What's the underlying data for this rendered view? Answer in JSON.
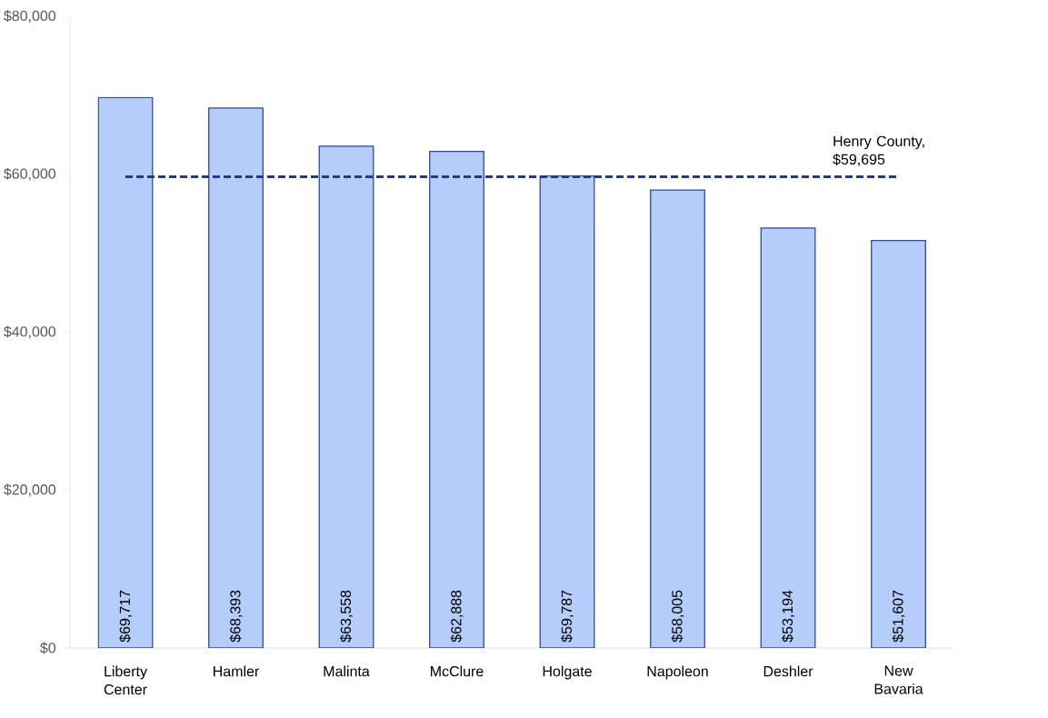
{
  "chart_data": {
    "type": "bar",
    "categories": [
      "Liberty Center",
      "Hamler",
      "Malinta",
      "McClure",
      "Holgate",
      "Napoleon",
      "Deshler",
      "New Bavaria"
    ],
    "values": [
      69717,
      68393,
      63558,
      62888,
      59787,
      58005,
      53194,
      51607
    ],
    "value_labels": [
      "$69,717",
      "$68,393",
      "$63,558",
      "$62,888",
      "$59,787",
      "$58,005",
      "$53,194",
      "$51,607"
    ],
    "color": "#b4cdfa",
    "ylim": [
      0,
      80000
    ],
    "yticks": [
      {
        "value": 0,
        "label": "$0"
      },
      {
        "value": 20000,
        "label": "$20,000"
      },
      {
        "value": 40000,
        "label": "$40,000"
      },
      {
        "value": 60000,
        "label": "$60,000"
      },
      {
        "value": 80000,
        "label": "$80,000"
      }
    ],
    "ref_lines": [
      {
        "axis": "y",
        "value": 59695,
        "label": "Henry County, $59,695",
        "color": "#1f3c88",
        "line_style": "dashed"
      }
    ]
  }
}
